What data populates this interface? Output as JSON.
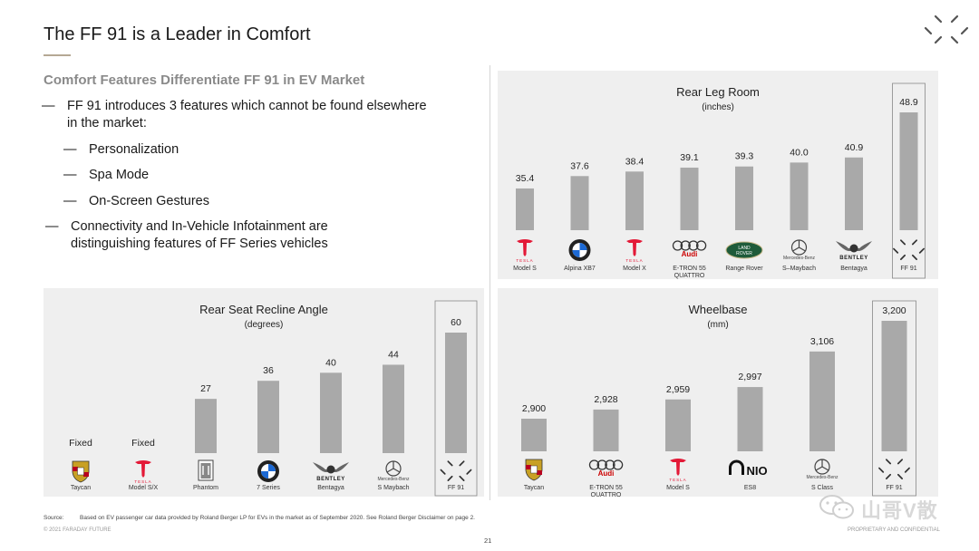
{
  "header": {
    "title": "The FF 91 is a Leader in  Comfort",
    "logo_icon": "faraday-future-logo-icon"
  },
  "left": {
    "subhead": "Comfort Features Differentiate FF 91 in EV Market",
    "bullets": [
      {
        "dash": "—",
        "text": "FF 91 introduces 3 features which cannot be found elsewhere"
      },
      {
        "dash": "",
        "text": "in the market:"
      },
      {
        "dash": "—",
        "text": "Personalization"
      },
      {
        "dash": "—",
        "text": "Spa Mode"
      },
      {
        "dash": "—",
        "text": "On-Screen Gestures"
      },
      {
        "dash": "—",
        "text": "Connectivity and In-Vehicle Infotainment are"
      },
      {
        "dash": "",
        "text": "distinguishing features of FF Series vehicles"
      }
    ]
  },
  "chart_data": [
    {
      "type": "bar",
      "title": "Rear Leg Room",
      "subtitle": "(inches)",
      "categories": [
        "Model S",
        "Alpina XB7",
        "Model X",
        "E-TRON 55 QUATTRO",
        "Range Rover",
        "S–Maybach",
        "Bentagya",
        "FF 91"
      ],
      "values": [
        35.4,
        37.6,
        38.4,
        39.1,
        39.3,
        40.0,
        40.9,
        48.9
      ],
      "value_labels": [
        "35.4",
        "37.6",
        "38.4",
        "39.1",
        "39.3",
        "40.0",
        "40.9",
        "48.9"
      ],
      "brands": [
        "tesla",
        "bmw",
        "tesla",
        "audi",
        "landrover",
        "mercedes",
        "bentley",
        "ff"
      ],
      "highlight_index": 7,
      "bar_color": "#a9a9a9"
    },
    {
      "type": "bar",
      "title": "Rear Seat Recline Angle",
      "subtitle": "(degrees)",
      "categories": [
        "Taycan",
        "Model S/X",
        "Phantom",
        "7 Series",
        "Bentagya",
        "S Maybach",
        "FF 91"
      ],
      "values": [
        null,
        null,
        27,
        36,
        40,
        44,
        60
      ],
      "value_labels": [
        "Fixed",
        "Fixed",
        "27",
        "36",
        "40",
        "44",
        "60"
      ],
      "brands": [
        "porsche",
        "tesla",
        "rollsroyce",
        "bmw",
        "bentley",
        "mercedes",
        "ff"
      ],
      "highlight_index": 6,
      "bar_color": "#a9a9a9"
    },
    {
      "type": "bar",
      "title": "Wheelbase",
      "subtitle": "(mm)",
      "categories": [
        "Taycan",
        "E-TRON 55 QUATTRO",
        "Model S",
        "ES8",
        "S Class",
        "FF 91"
      ],
      "values": [
        2900,
        2928,
        2959,
        2997,
        3106,
        3200
      ],
      "value_labels": [
        "2,900",
        "2,928",
        "2,959",
        "2,997",
        "3,106",
        "3,200"
      ],
      "brands": [
        "porsche",
        "audi",
        "tesla",
        "nio",
        "mercedes",
        "ff"
      ],
      "highlight_index": 5,
      "bar_color": "#a9a9a9"
    }
  ],
  "brand_text": {
    "tesla": "TESLA",
    "audi": "Audi",
    "landrover_top": "LAND",
    "landrover_bottom": "ROVER",
    "mercedes": "Mercedes-Benz",
    "bentley": "BENTLEY",
    "nio": "NIO"
  },
  "footer": {
    "source_label": "Source:",
    "source_text": "Based on EV passenger car data provided by Roland Berger LP for EVs in the market as of September 2020. See Roland Berger Disclaimer on page 2.",
    "copyright": "© 2021 FARADAY FUTURE",
    "proprietary": "PROPRIETARY  AND CONFIDENTIAL",
    "page_number": "21",
    "watermark_text": "山哥V散",
    "watermark_icon": "wechat-icon"
  }
}
